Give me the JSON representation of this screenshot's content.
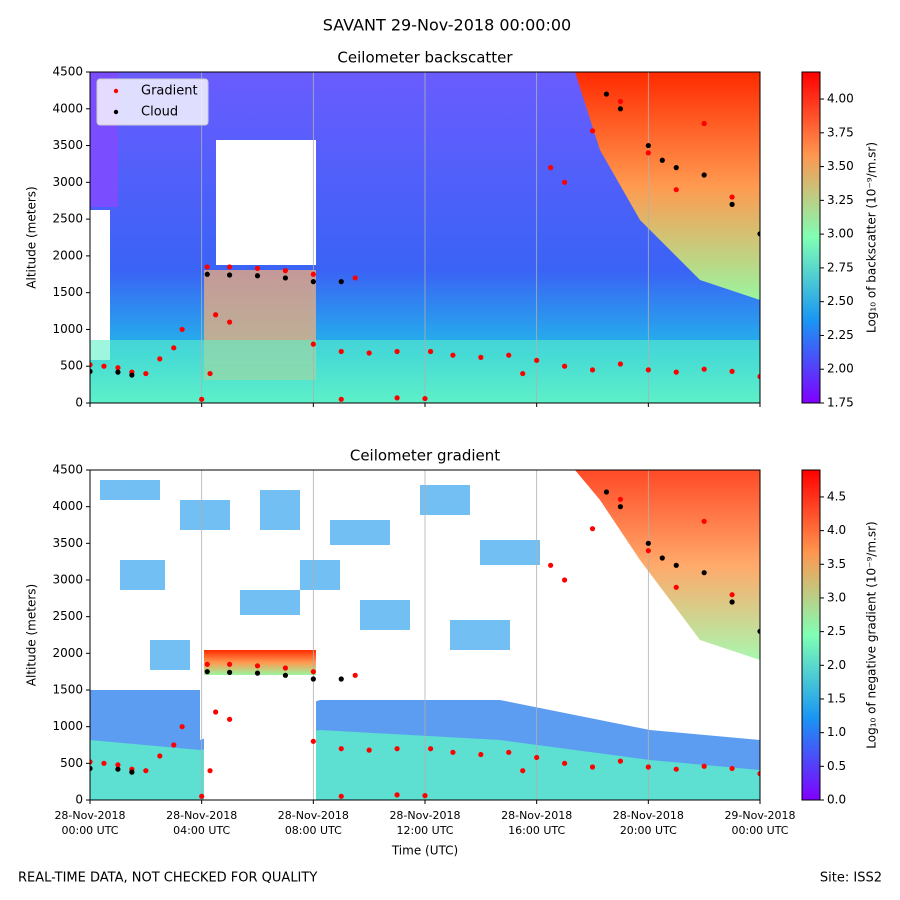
{
  "header": {
    "title": "SAVANT 29-Nov-2018 00:00:00"
  },
  "footer": {
    "note": "REAL-TIME DATA, NOT CHECKED FOR QUALITY",
    "site": "Site: ISS2"
  },
  "chart_data": [
    {
      "type": "heatmap_scatter",
      "title": "Ceilometer backscatter",
      "y_label": "Altitude (meters)",
      "colorbar_label": "Log₁₀ of backscatter (10⁻⁹/m.sr)",
      "xlim": [
        0,
        24
      ],
      "ylim": [
        0,
        4500
      ],
      "clim": [
        1.75,
        4.2
      ],
      "xticks": [
        {
          "value": 0,
          "label": ""
        },
        {
          "value": 4,
          "label": ""
        },
        {
          "value": 8,
          "label": ""
        },
        {
          "value": 12,
          "label": ""
        },
        {
          "value": 16,
          "label": ""
        },
        {
          "value": 20,
          "label": ""
        },
        {
          "value": 24,
          "label": ""
        }
      ],
      "yticks": [
        0,
        500,
        1000,
        1500,
        2000,
        2500,
        3000,
        3500,
        4000,
        4500
      ],
      "cticks": [
        1.75,
        {
          "value": 2,
          "label": "2.00"
        },
        2.25,
        {
          "value": 2.5,
          "label": "2.50"
        },
        2.75,
        {
          "value": 3,
          "label": "3.00"
        },
        3.25,
        {
          "value": 3.5,
          "label": "3.50"
        },
        3.75,
        {
          "value": 4,
          "label": "4.00"
        }
      ],
      "grid": true,
      "legend": "upper left",
      "series": [
        {
          "name": "Gradient",
          "color": "#ff0000",
          "x": [
            0,
            0.5,
            1,
            1.5,
            2,
            2.5,
            3,
            3.3,
            4,
            4.3,
            4.5,
            5,
            4.2,
            5,
            6,
            7,
            8,
            9.5,
            8,
            9,
            10,
            11,
            12.2,
            13,
            14,
            15,
            15.5,
            16,
            17,
            18,
            19,
            20,
            21,
            22,
            23,
            24,
            16.5,
            17,
            18,
            19,
            20,
            21,
            22,
            23,
            9,
            11,
            12
          ],
          "values": [
            520,
            500,
            480,
            420,
            400,
            600,
            750,
            1000,
            50,
            400,
            1200,
            1100,
            1850,
            1850,
            1830,
            1800,
            1750,
            1700,
            800,
            700,
            680,
            700,
            700,
            650,
            620,
            650,
            400,
            580,
            500,
            450,
            530,
            450,
            420,
            460,
            430,
            360,
            3200,
            3000,
            3700,
            4100,
            3400,
            2900,
            3800,
            2800,
            50,
            70,
            60
          ]
        },
        {
          "name": "Cloud",
          "color": "#000000",
          "x": [
            0,
            1,
            1.5,
            4.2,
            5,
            6,
            7,
            8,
            9,
            18.5,
            19,
            20,
            20.5,
            21,
            22,
            23,
            24
          ],
          "values": [
            430,
            420,
            380,
            1750,
            1740,
            1730,
            1700,
            1650,
            1650,
            4200,
            4000,
            3500,
            3300,
            3200,
            3100,
            2700,
            2300
          ]
        }
      ]
    },
    {
      "type": "heatmap_scatter",
      "title": "Ceilometer gradient",
      "y_label": "Altitude (meters)",
      "x_label": "Time (UTC)",
      "colorbar_label": "Log₁₀ of negative gradient (10⁻⁹/m.sr)",
      "xlim": [
        0,
        24
      ],
      "ylim": [
        0,
        4500
      ],
      "clim": [
        0,
        4.9
      ],
      "xticks": [
        {
          "value": 0,
          "label": "28-Nov-2018\n00:00 UTC"
        },
        {
          "value": 4,
          "label": "28-Nov-2018\n04:00 UTC"
        },
        {
          "value": 8,
          "label": "28-Nov-2018\n08:00 UTC"
        },
        {
          "value": 12,
          "label": "28-Nov-2018\n12:00 UTC"
        },
        {
          "value": 16,
          "label": "28-Nov-2018\n16:00 UTC"
        },
        {
          "value": 20,
          "label": "28-Nov-2018\n20:00 UTC"
        },
        {
          "value": 24,
          "label": "29-Nov-2018\n00:00 UTC"
        }
      ],
      "yticks": [
        0,
        500,
        1000,
        1500,
        2000,
        2500,
        3000,
        3500,
        4000,
        4500
      ],
      "cticks": [
        {
          "value": 0,
          "label": "0.0"
        },
        0.5,
        {
          "value": 1,
          "label": "1.0"
        },
        1.5,
        {
          "value": 2,
          "label": "2.0"
        },
        2.5,
        {
          "value": 3,
          "label": "3.0"
        },
        3.5,
        {
          "value": 4,
          "label": "4.0"
        },
        4.5
      ],
      "grid": true,
      "series": [
        {
          "name": "Gradient",
          "color": "#ff0000",
          "x": [
            0,
            0.5,
            1,
            1.5,
            2,
            2.5,
            3,
            3.3,
            4,
            4.3,
            4.5,
            5,
            4.2,
            5,
            6,
            7,
            8,
            9.5,
            8,
            9,
            10,
            11,
            12.2,
            13,
            14,
            15,
            15.5,
            16,
            17,
            18,
            19,
            20,
            21,
            22,
            23,
            24,
            16.5,
            17,
            18,
            19,
            20,
            21,
            22,
            23,
            9,
            11,
            12
          ],
          "values": [
            520,
            500,
            480,
            420,
            400,
            600,
            750,
            1000,
            50,
            400,
            1200,
            1100,
            1850,
            1850,
            1830,
            1800,
            1750,
            1700,
            800,
            700,
            680,
            700,
            700,
            650,
            620,
            650,
            400,
            580,
            500,
            450,
            530,
            450,
            420,
            460,
            430,
            360,
            3200,
            3000,
            3700,
            4100,
            3400,
            2900,
            3800,
            2800,
            50,
            70,
            60
          ]
        },
        {
          "name": "Cloud",
          "color": "#000000",
          "x": [
            0,
            1,
            1.5,
            4.2,
            5,
            6,
            7,
            8,
            9,
            18.5,
            19,
            20,
            20.5,
            21,
            22,
            23,
            24
          ],
          "values": [
            430,
            420,
            380,
            1750,
            1740,
            1730,
            1700,
            1650,
            1650,
            4200,
            4000,
            3500,
            3300,
            3200,
            3100,
            2700,
            2300
          ]
        }
      ]
    }
  ]
}
